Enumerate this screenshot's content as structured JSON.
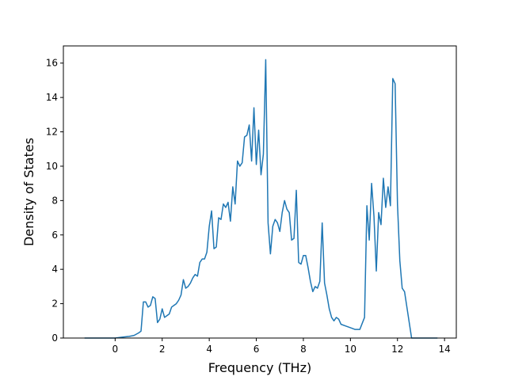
{
  "chart_data": {
    "type": "line",
    "title": "",
    "xlabel": "Frequency (THz)",
    "ylabel": "Density of States",
    "xlim": [
      -2.2,
      14.5
    ],
    "ylim": [
      0,
      17
    ],
    "x_ticks": [
      0,
      2,
      4,
      6,
      8,
      10,
      12,
      14
    ],
    "x_tick_labels": [
      "0",
      "2",
      "4",
      "6",
      "8",
      "10",
      "12",
      "14"
    ],
    "y_ticks": [
      0,
      2,
      4,
      6,
      8,
      10,
      12,
      14,
      16
    ],
    "y_tick_labels": [
      "0",
      "2",
      "4",
      "6",
      "8",
      "10",
      "12",
      "14",
      "16"
    ],
    "grid": false,
    "legend": "none",
    "line_color": "#1f77b4",
    "series": [
      {
        "x": [
          -1.3,
          -0.6,
          0,
          0.3,
          0.6,
          0.8,
          1.0,
          1.1,
          1.2,
          1.3,
          1.4,
          1.5,
          1.6,
          1.7,
          1.8,
          1.9,
          2.0,
          2.1,
          2.2,
          2.3,
          2.4,
          2.5,
          2.6,
          2.7,
          2.8,
          2.9,
          3.0,
          3.1,
          3.2,
          3.3,
          3.4,
          3.5,
          3.6,
          3.7,
          3.8,
          3.9,
          4.0,
          4.1,
          4.2,
          4.3,
          4.4,
          4.5,
          4.6,
          4.7,
          4.8,
          4.9,
          5.0,
          5.1,
          5.2,
          5.3,
          5.4,
          5.5,
          5.6,
          5.7,
          5.8,
          5.9,
          6.0,
          6.1,
          6.2,
          6.3,
          6.4,
          6.5,
          6.6,
          6.7,
          6.8,
          6.9,
          7.0,
          7.1,
          7.2,
          7.3,
          7.4,
          7.5,
          7.6,
          7.7,
          7.8,
          7.9,
          8.0,
          8.1,
          8.2,
          8.3,
          8.4,
          8.5,
          8.6,
          8.7,
          8.8,
          8.9,
          9.0,
          9.1,
          9.2,
          9.3,
          9.4,
          9.5,
          9.6,
          9.8,
          10.0,
          10.2,
          10.4,
          10.6,
          10.7,
          10.8,
          10.9,
          11.0,
          11.1,
          11.2,
          11.3,
          11.4,
          11.5,
          11.6,
          11.7,
          11.8,
          11.9,
          12.0,
          12.1,
          12.2,
          12.3,
          12.4,
          12.5,
          12.6,
          12.8,
          13.0,
          13.3,
          13.7
        ],
        "y": [
          0,
          0,
          0,
          0.05,
          0.1,
          0.15,
          0.3,
          0.4,
          2.1,
          2.1,
          1.8,
          1.9,
          2.4,
          2.3,
          0.9,
          1.1,
          1.7,
          1.2,
          1.3,
          1.4,
          1.8,
          1.9,
          2.0,
          2.2,
          2.5,
          3.4,
          2.9,
          3.0,
          3.2,
          3.5,
          3.7,
          3.6,
          4.4,
          4.6,
          4.6,
          5.0,
          6.5,
          7.4,
          5.2,
          5.3,
          7.0,
          6.9,
          7.8,
          7.6,
          7.9,
          6.8,
          8.8,
          7.8,
          10.3,
          10.0,
          10.2,
          11.7,
          11.8,
          12.4,
          10.3,
          13.4,
          10.1,
          12.1,
          9.5,
          10.7,
          16.2,
          6.7,
          4.9,
          6.5,
          6.9,
          6.7,
          6.2,
          7.3,
          8.0,
          7.5,
          7.3,
          5.7,
          5.8,
          8.6,
          4.4,
          4.3,
          4.8,
          4.8,
          4.1,
          3.3,
          2.7,
          3.0,
          2.9,
          3.3,
          6.7,
          3.2,
          2.5,
          1.7,
          1.2,
          1.0,
          1.2,
          1.1,
          0.8,
          0.7,
          0.6,
          0.5,
          0.5,
          1.2,
          7.7,
          5.7,
          9.0,
          7.1,
          3.9,
          7.3,
          6.6,
          9.3,
          7.6,
          8.8,
          7.7,
          15.1,
          14.8,
          7.8,
          4.5,
          2.9,
          2.7,
          1.8,
          0.9,
          0,
          0,
          0,
          0,
          0
        ]
      }
    ]
  }
}
